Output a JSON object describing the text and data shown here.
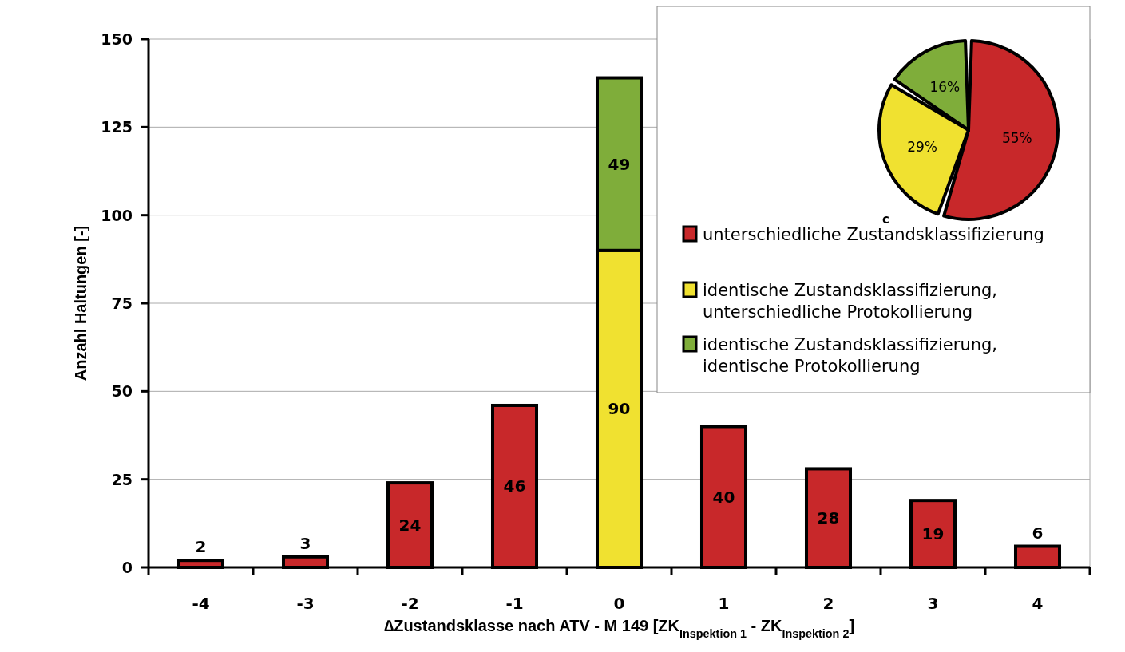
{
  "chart_data": [
    {
      "type": "bar",
      "stacked": true,
      "ylabel": "Anzahl Haltungen [-]",
      "xlabel": "∆Zustandsklasse nach ATV - M 149 [ZK$_{Inspektion 1}$ - ZK$_{Inspektion 2}$]",
      "categories": [
        "-4",
        "-3",
        "-2",
        "-1",
        "0",
        "1",
        "2",
        "3",
        "4"
      ],
      "series": [
        {
          "name": "unterschiedliche Zustandsklassifizierung",
          "color": "#c8282a",
          "values": [
            2,
            3,
            24,
            46,
            null,
            40,
            28,
            19,
            6
          ]
        },
        {
          "name": "identische Zustandsklassifizierung, unterschiedliche Protokollierung",
          "color": "#f0e130",
          "values": [
            null,
            null,
            null,
            null,
            90,
            null,
            null,
            null,
            null
          ]
        },
        {
          "name": "identische Zustandsklassifizierung, identische Protokollierung",
          "color": "#7fad3a",
          "values": [
            null,
            null,
            null,
            null,
            49,
            null,
            null,
            null,
            null
          ]
        }
      ],
      "ylim": [
        0,
        150
      ],
      "yticks": [
        0,
        25,
        50,
        75,
        100,
        125,
        150
      ],
      "grid": "y",
      "legend": "top right",
      "data_labels": true
    },
    {
      "type": "pie",
      "categories": [
        null,
        null,
        null
      ],
      "values": [
        55,
        29,
        16
      ],
      "colors": [
        "#c8282a",
        "#f0e130",
        "#7fad3a"
      ],
      "value_labels": [
        "55%",
        "29%",
        "16%"
      ],
      "annotations": [
        "c"
      ]
    }
  ]
}
